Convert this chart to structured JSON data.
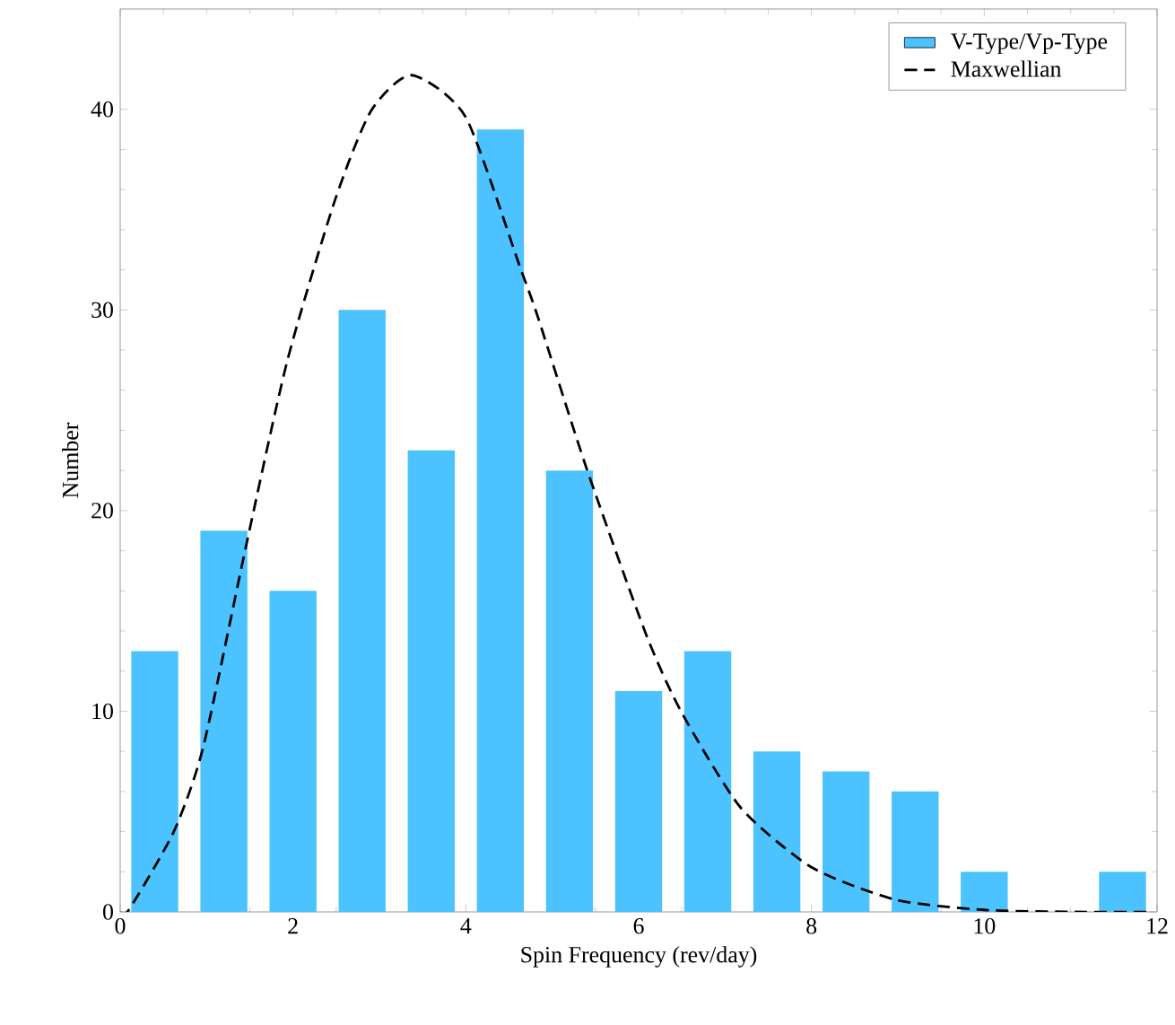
{
  "chart_data": {
    "type": "histogram",
    "xlabel": "Spin Frequency (rev/day)",
    "ylabel": "Number",
    "bins": [
      0,
      0.8,
      1.6,
      2.4,
      3.2,
      4.0,
      4.8,
      5.6,
      6.4,
      7.2,
      8.0,
      8.8,
      9.6,
      10.4,
      11.2,
      12.0
    ],
    "xlim": [
      0,
      12
    ],
    "ylim": [
      0,
      45
    ],
    "xticks": [
      0,
      2,
      4,
      6,
      8,
      10,
      12
    ],
    "yticks": [
      0,
      10,
      20,
      30,
      40
    ],
    "legend": "top right",
    "grid": false,
    "series": [
      {
        "name": "V-Type/Vp-Type",
        "color": "#4cc2ff",
        "values": [
          13,
          19,
          16,
          30,
          23,
          39,
          22,
          11,
          13,
          8,
          7,
          6,
          2,
          0,
          2
        ]
      },
      {
        "name": "Maxwellian",
        "type": "line",
        "color": "#000000",
        "line_style": "dashed",
        "marker": "none",
        "x": [
          0,
          0.1,
          0.62,
          0.96,
          1.45,
          1.93,
          2.48,
          2.9,
          3.37,
          4.0,
          4.63,
          4.83,
          5.39,
          6.08,
          6.49,
          7.18,
          8.01,
          8.98,
          10.0,
          11.06,
          11.95
        ],
        "values": [
          0,
          0.1,
          4.0,
          8.2,
          18.1,
          27.4,
          35.4,
          39.9,
          41.7,
          39.6,
          32.1,
          29.7,
          22.2,
          13.9,
          10.0,
          5.2,
          2.2,
          0.6,
          0.1,
          0,
          0
        ]
      }
    ]
  }
}
